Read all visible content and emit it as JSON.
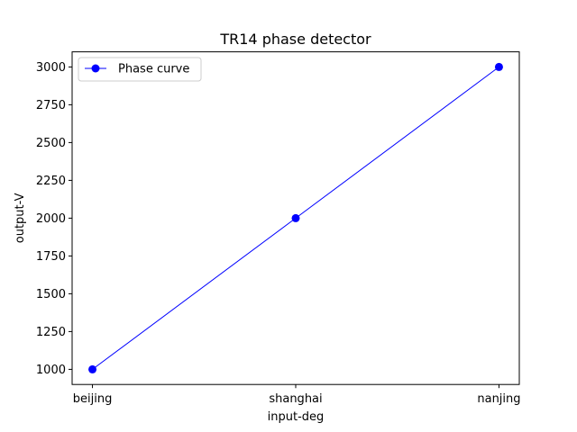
{
  "chart_data": {
    "type": "line",
    "title": "TR14 phase detector",
    "xlabel": "input-deg",
    "ylabel": "output-V",
    "categories": [
      "beijing",
      "shanghai",
      "nanjing"
    ],
    "series": [
      {
        "name": "Phase curve",
        "values": [
          1000,
          2000,
          3000
        ],
        "color": "#0000ff",
        "marker": "circle"
      }
    ],
    "ylim": [
      900,
      3100
    ],
    "yticks": [
      1000,
      1250,
      1500,
      1750,
      2000,
      2250,
      2500,
      2750,
      3000
    ],
    "grid": false,
    "legend_position": "upper-left"
  }
}
